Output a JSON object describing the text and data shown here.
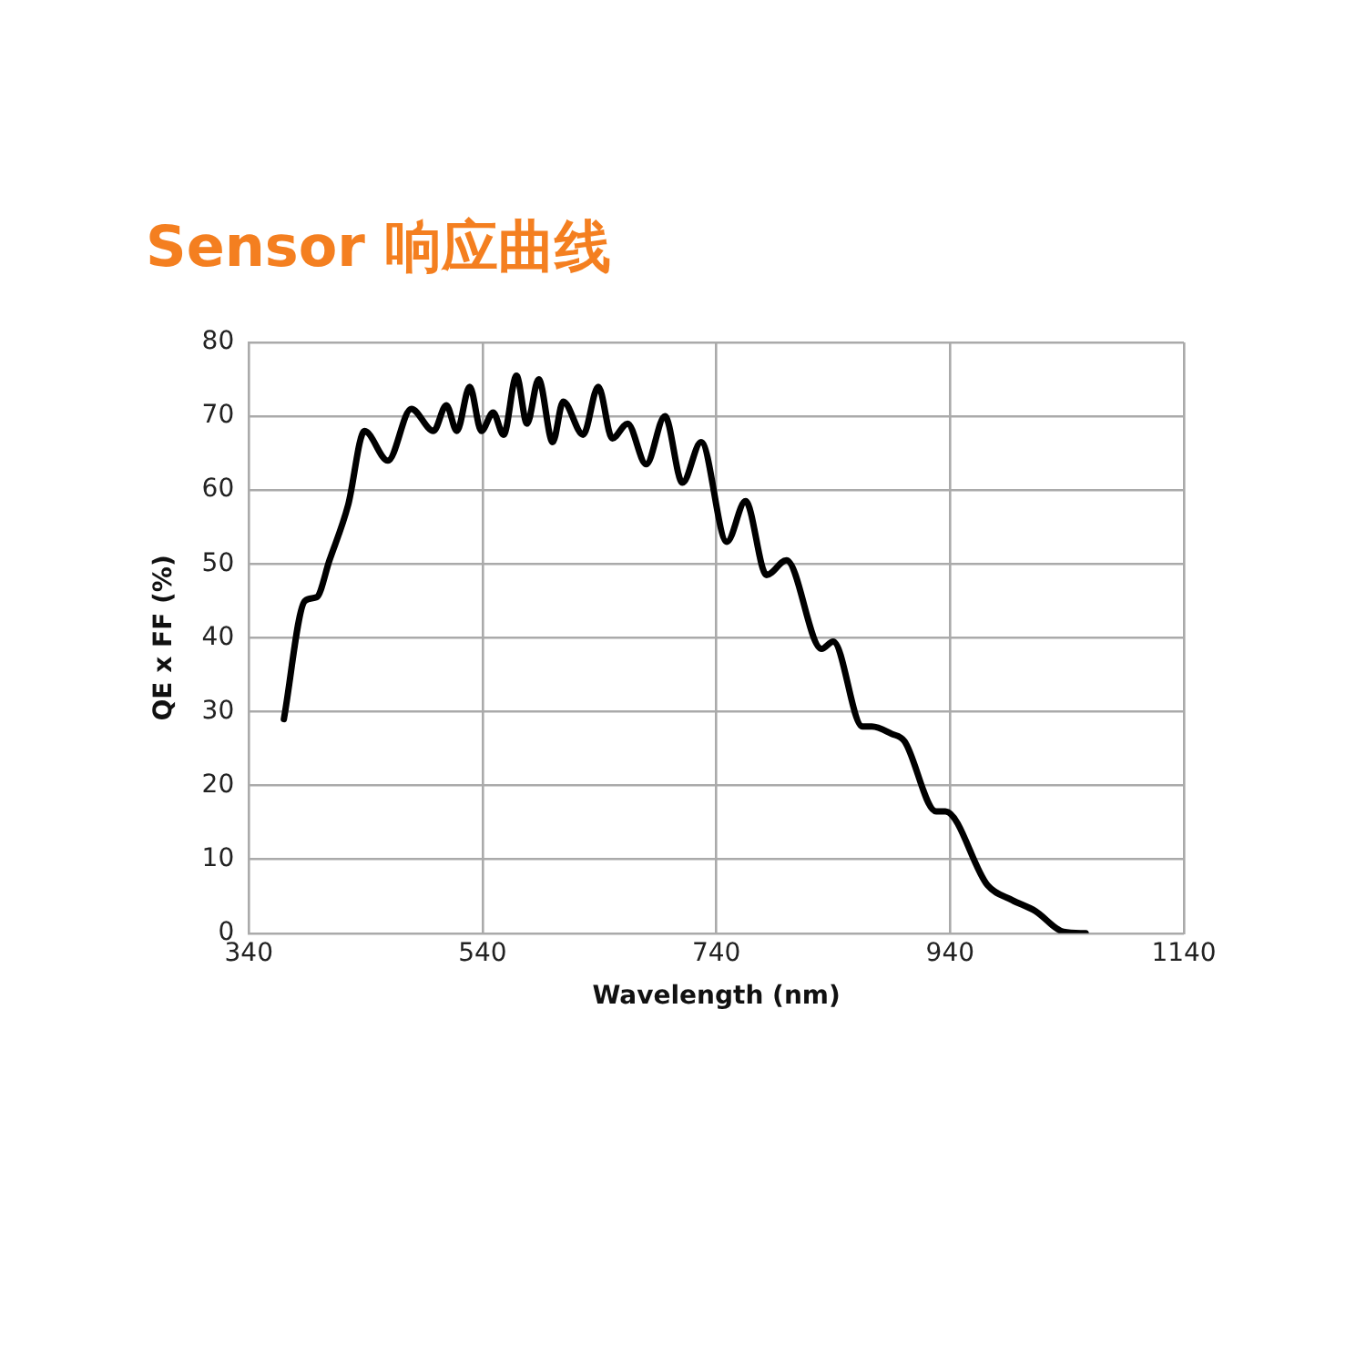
{
  "chart_data": {
    "type": "line",
    "title": "Sensor 响应曲线",
    "xlabel": "Wavelength (nm)",
    "ylabel": "QE x FF (%)",
    "xlim": [
      340,
      1140
    ],
    "xticks": [
      340,
      540,
      740,
      940,
      1140
    ],
    "ylim": [
      0,
      80
    ],
    "yticks": [
      0,
      10,
      20,
      30,
      40,
      50,
      60,
      70,
      80
    ],
    "grid": true,
    "marker": "none",
    "line_style": "solid",
    "series": [
      {
        "color": "#000000",
        "x": [
          370,
          388,
          398,
          409,
          425,
          439,
          459,
          479,
          498,
          509,
          518,
          529,
          539,
          549,
          558,
          569,
          578,
          588,
          600,
          609,
          626,
          639,
          651,
          664,
          680,
          696,
          711,
          727,
          749,
          765,
          783,
          800,
          830,
          840,
          865,
          873,
          890,
          901,
          928,
          936,
          972,
          993,
          1013,
          1037,
          1056
        ],
        "values": [
          29,
          45,
          45.5,
          50.5,
          58,
          68,
          64,
          71,
          68,
          71.5,
          68,
          74,
          68,
          70.5,
          67.5,
          75.5,
          69,
          75,
          66.5,
          72,
          67.5,
          74,
          67,
          69,
          63.5,
          70,
          61,
          66.5,
          53,
          58.5,
          48.5,
          50.5,
          38.5,
          39.5,
          28,
          28,
          27,
          26,
          16.5,
          16.5,
          6.5,
          4.5,
          3,
          0.2,
          0
        ]
      }
    ]
  }
}
